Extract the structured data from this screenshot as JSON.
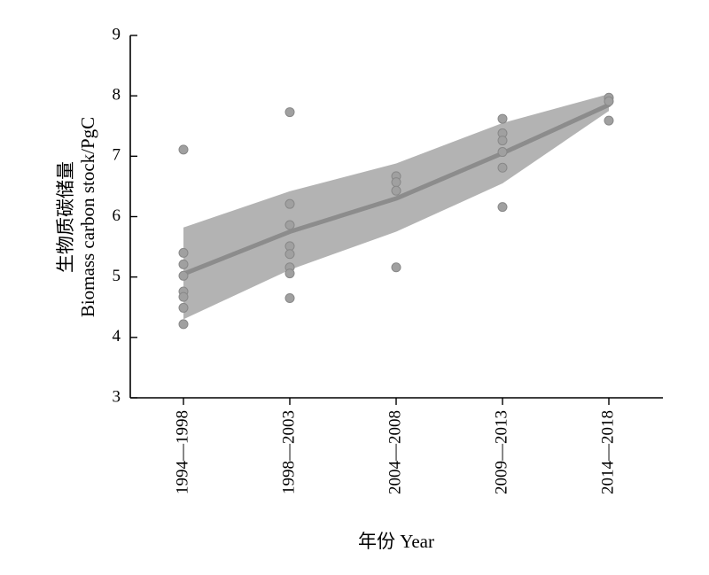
{
  "chart_data": {
    "type": "scatter",
    "xlabel": "年份 Year",
    "ylabel_cn": "生物质碳储量",
    "ylabel_en": "Biomass carbon stock/PgC",
    "categories": [
      "1994—1998",
      "1998—2003",
      "2004—2008",
      "2009—2013",
      "2014—2018"
    ],
    "yticks": [
      3,
      4,
      5,
      6,
      7,
      8,
      9
    ],
    "ylim": [
      3,
      9
    ],
    "grid": false,
    "points": [
      [
        7.11,
        5.4,
        5.21,
        5.02,
        4.76,
        4.67,
        4.49,
        4.22
      ],
      [
        7.73,
        6.21,
        5.86,
        5.51,
        5.38,
        5.16,
        5.06,
        4.65
      ],
      [
        6.67,
        6.57,
        6.43,
        5.16
      ],
      [
        7.62,
        7.38,
        7.26,
        7.07,
        6.81,
        6.16
      ],
      [
        7.97,
        7.91,
        7.59
      ]
    ],
    "fit": [
      5.05,
      5.75,
      6.3,
      7.05,
      7.85
    ],
    "band_upper": [
      5.82,
      6.42,
      6.88,
      7.55,
      8.03
    ],
    "band_lower": [
      4.3,
      5.12,
      5.75,
      6.55,
      7.75
    ],
    "colors": {
      "points": "#a0a0a0",
      "fit": "#8c8c8c",
      "band": "#b3b3b3"
    }
  }
}
